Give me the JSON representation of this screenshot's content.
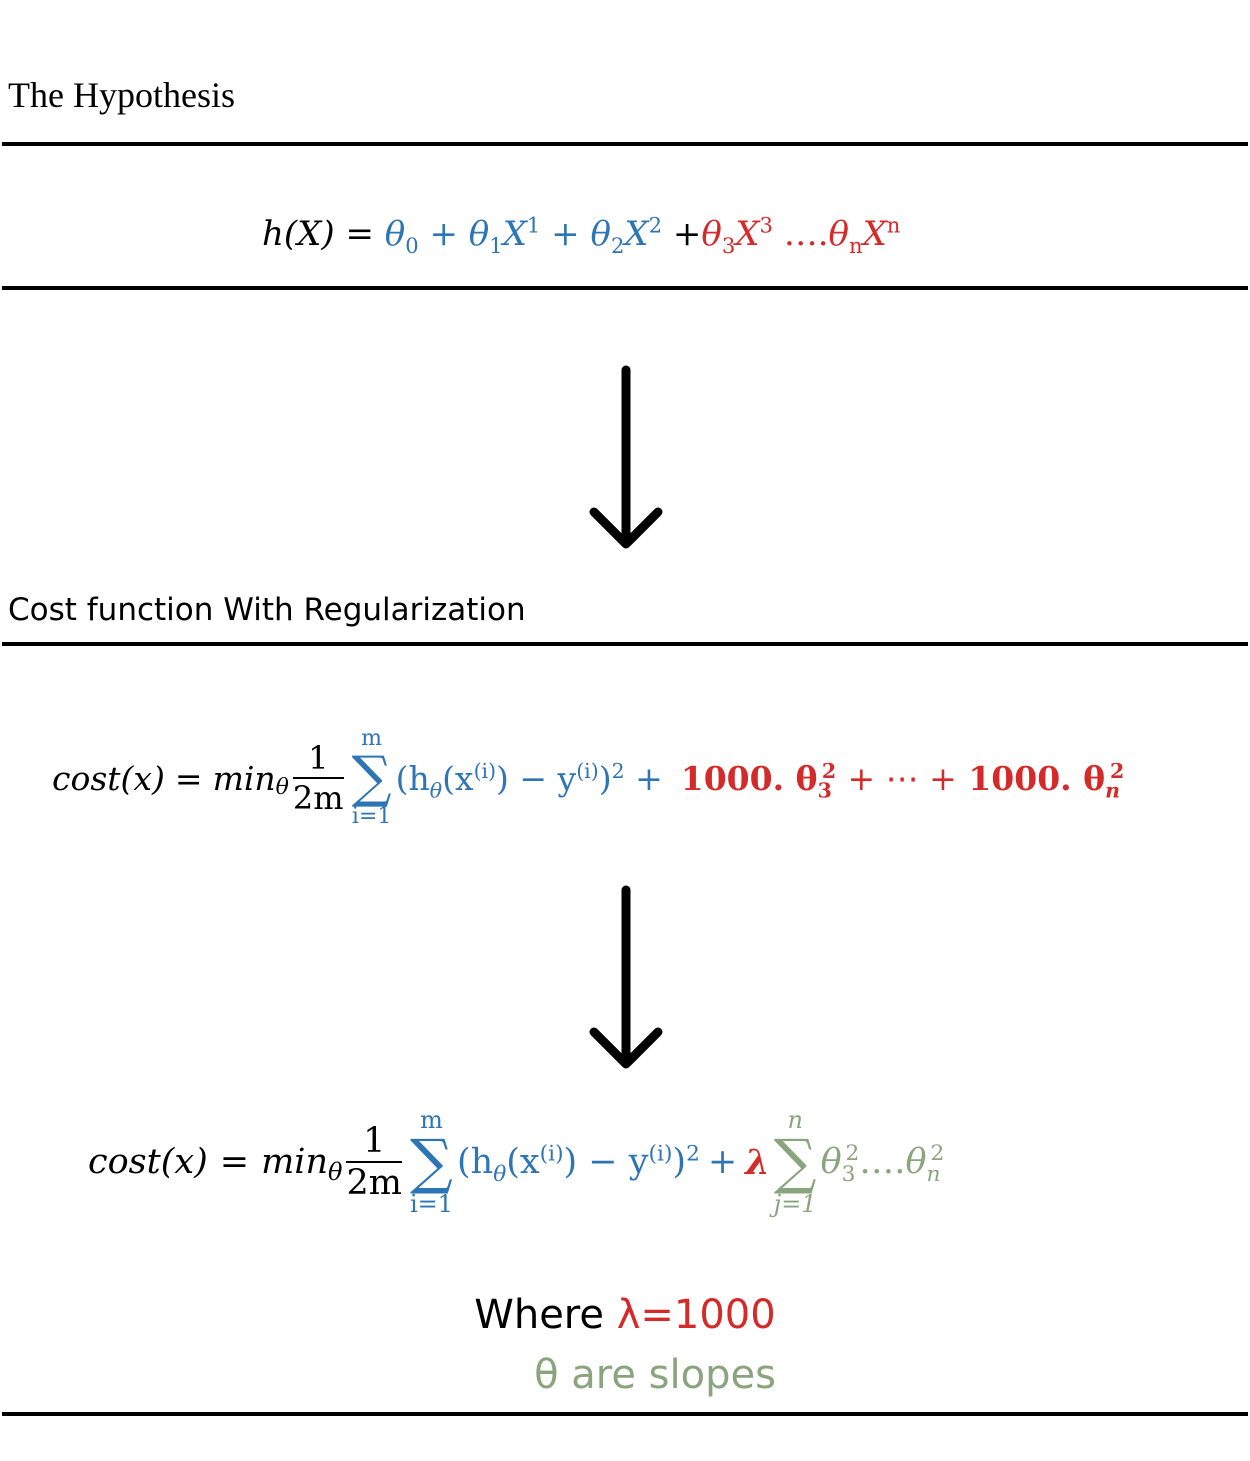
{
  "section1": {
    "title": "The Hypothesis",
    "eq": {
      "lhs": "h(X)",
      "eqsign": "=",
      "t0": "θ",
      "t0sub": "0",
      "plus": "+",
      "t1": "θ",
      "t1sub": "1",
      "x1": "X",
      "x1sup": "1",
      "t2": "θ",
      "t2sub": "2",
      "x2": "X",
      "x2sup": "2",
      "t3": "θ",
      "t3sub": "3",
      "x3": "X",
      "x3sup": "3",
      "dots": "….",
      "tn": "θ",
      "tnsub": "n",
      "xn": "X",
      "xnsup": "n"
    }
  },
  "section2": {
    "title": "Cost function With Regularization",
    "eq": {
      "lhs": "cost(x)",
      "eqsign": "=",
      "min": "min",
      "minsub": "θ",
      "num": "1",
      "den": "2m",
      "sum_top": "m",
      "sum_bot": "i=1",
      "sigma": "∑",
      "body": "(h",
      "hsub": "θ",
      "xpart": "(x",
      "xsup": "(i)",
      "mid": ") − y",
      "ysup": "(i)",
      "close": ")",
      "sq": "2",
      "plus": "+",
      "reg1": "1000. θ",
      "reg1sub": "3",
      "reg1sup": "2",
      "ellipsis": "+ ⋯ +",
      "reg2": "1000. θ",
      "reg2sub": "n",
      "reg2sup": "2"
    }
  },
  "section3": {
    "eq": {
      "lhs": "cost(x)",
      "eqsign": "=",
      "min": "min",
      "minsub": "θ",
      "num": "1",
      "den": "2m",
      "sum_top": "m",
      "sum_bot": "i=1",
      "sigma": "∑",
      "body": "(h",
      "hsub": "θ",
      "xpart": "(x",
      "xsup": "(i)",
      "mid": ") − y",
      "ysup": "(i)",
      "close": ")",
      "sq": "2",
      "plus": "+",
      "lambda": "λ",
      "sum2_top": "n",
      "sum2_bot": "j=1",
      "th3": "θ",
      "th3sub": "3",
      "th3sup": "2",
      "dots": "….",
      "thn": "θ",
      "thnsub": "n",
      "thnsup": "2"
    },
    "where_prefix": "Where ",
    "where_value": "λ=1000",
    "slopes": "θ are slopes"
  },
  "colors": {
    "blue": "#2e75b6",
    "red": "#d42a2a",
    "green": "#8aa47e"
  },
  "icons": [
    "down-arrow-icon",
    "down-arrow-icon"
  ]
}
